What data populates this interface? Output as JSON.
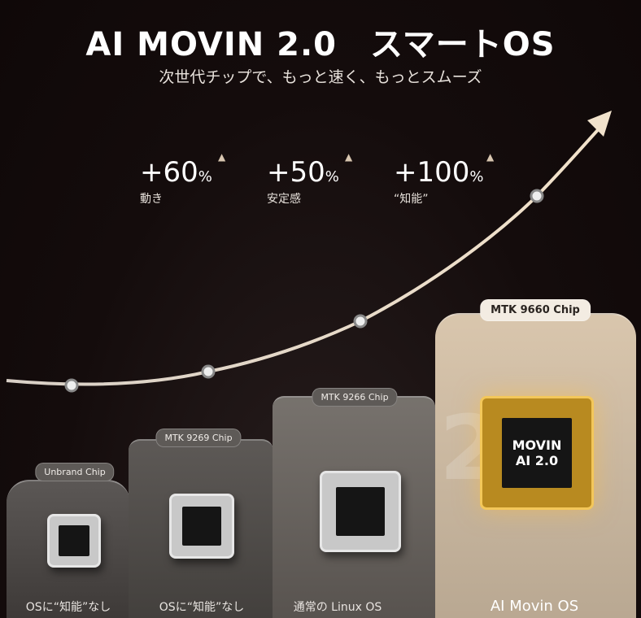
{
  "header": {
    "title": "AI MOVIN 2.0　スマートOS",
    "subtitle": "次世代チップで、もっと速く、もっとスムーズ"
  },
  "stats": [
    {
      "value": "+60",
      "unit": "%",
      "label": "動き",
      "icon": "up-triangle-icon"
    },
    {
      "value": "+50",
      "unit": "%",
      "label": "安定感",
      "icon": "up-triangle-icon"
    },
    {
      "value": "+100",
      "unit": "%",
      "label": "“知能”",
      "icon": "up-triangle-icon"
    }
  ],
  "tiers": [
    {
      "chip": "Unbrand Chip",
      "os": "OSに“知能”なし"
    },
    {
      "chip": "MTK 9269 Chip",
      "os": "OSに“知能”なし"
    },
    {
      "chip": "MTK 9266 Chip",
      "os": "通常の Linux OS"
    },
    {
      "chip": "MTK 9660 Chip",
      "os": "AI Movin OS",
      "chip_text": [
        "MOVIN",
        "AI 2.0"
      ],
      "watermark": "2.0"
    }
  ],
  "colors": {
    "background": "#120a0a",
    "accent_gold": "#f3c75a",
    "curve": "#f1e2cc"
  }
}
